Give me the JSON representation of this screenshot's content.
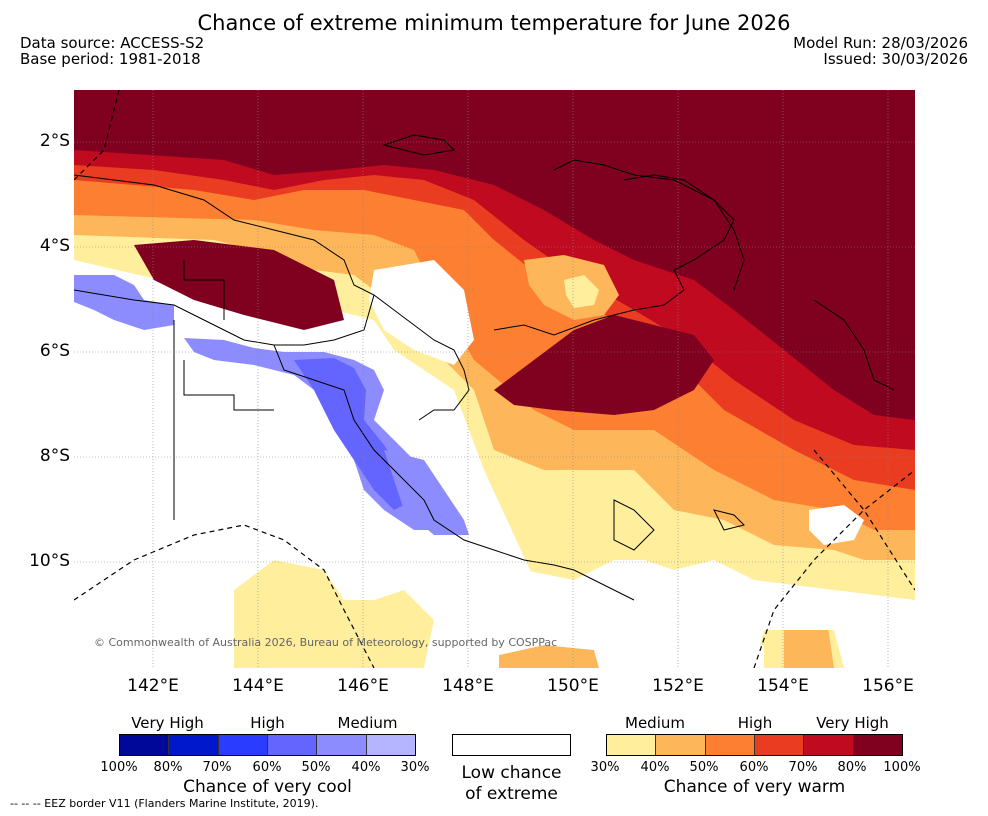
{
  "title": "Chance of extreme minimum temperature for June 2026",
  "meta": {
    "data_source": "Data source: ACCESS-S2",
    "base_period": "Base period: 1981-2018",
    "model_run": "Model Run: 28/03/2026",
    "issued": "Issued: 30/03/2026"
  },
  "axes": {
    "lat_labels": [
      "2°S",
      "4°S",
      "6°S",
      "8°S",
      "10°S"
    ],
    "lon_labels": [
      "142°E",
      "144°E",
      "146°E",
      "148°E",
      "150°E",
      "152°E",
      "154°E",
      "156°E"
    ]
  },
  "copyright": "© Commonwealth of Australia 2026, Bureau of Meteorology, supported by COSPPac",
  "legend": {
    "cool": {
      "levels": [
        "Very High",
        "High",
        "Medium"
      ],
      "ticks": [
        "100%",
        "80%",
        "70%",
        "60%",
        "50%",
        "40%",
        "30%"
      ],
      "colors": [
        "#00089a",
        "#0018cc",
        "#2a3cff",
        "#6464ff",
        "#8c8cff",
        "#b4b4ff"
      ],
      "caption": "Chance of very cool"
    },
    "low": {
      "caption_line1": "Low chance",
      "caption_line2": "of extreme",
      "color": "#ffffff"
    },
    "warm": {
      "levels": [
        "Medium",
        "High",
        "Very High"
      ],
      "ticks": [
        "30%",
        "40%",
        "50%",
        "60%",
        "70%",
        "80%",
        "100%"
      ],
      "colors": [
        "#ffee9c",
        "#fdb659",
        "#fd7f32",
        "#e93c20",
        "#bf0a1f",
        "#800020"
      ],
      "caption": "Chance of very warm"
    }
  },
  "eez_note": "--  --  -- EEZ border V11 (Flanders Marine Institute, 2019)."
}
